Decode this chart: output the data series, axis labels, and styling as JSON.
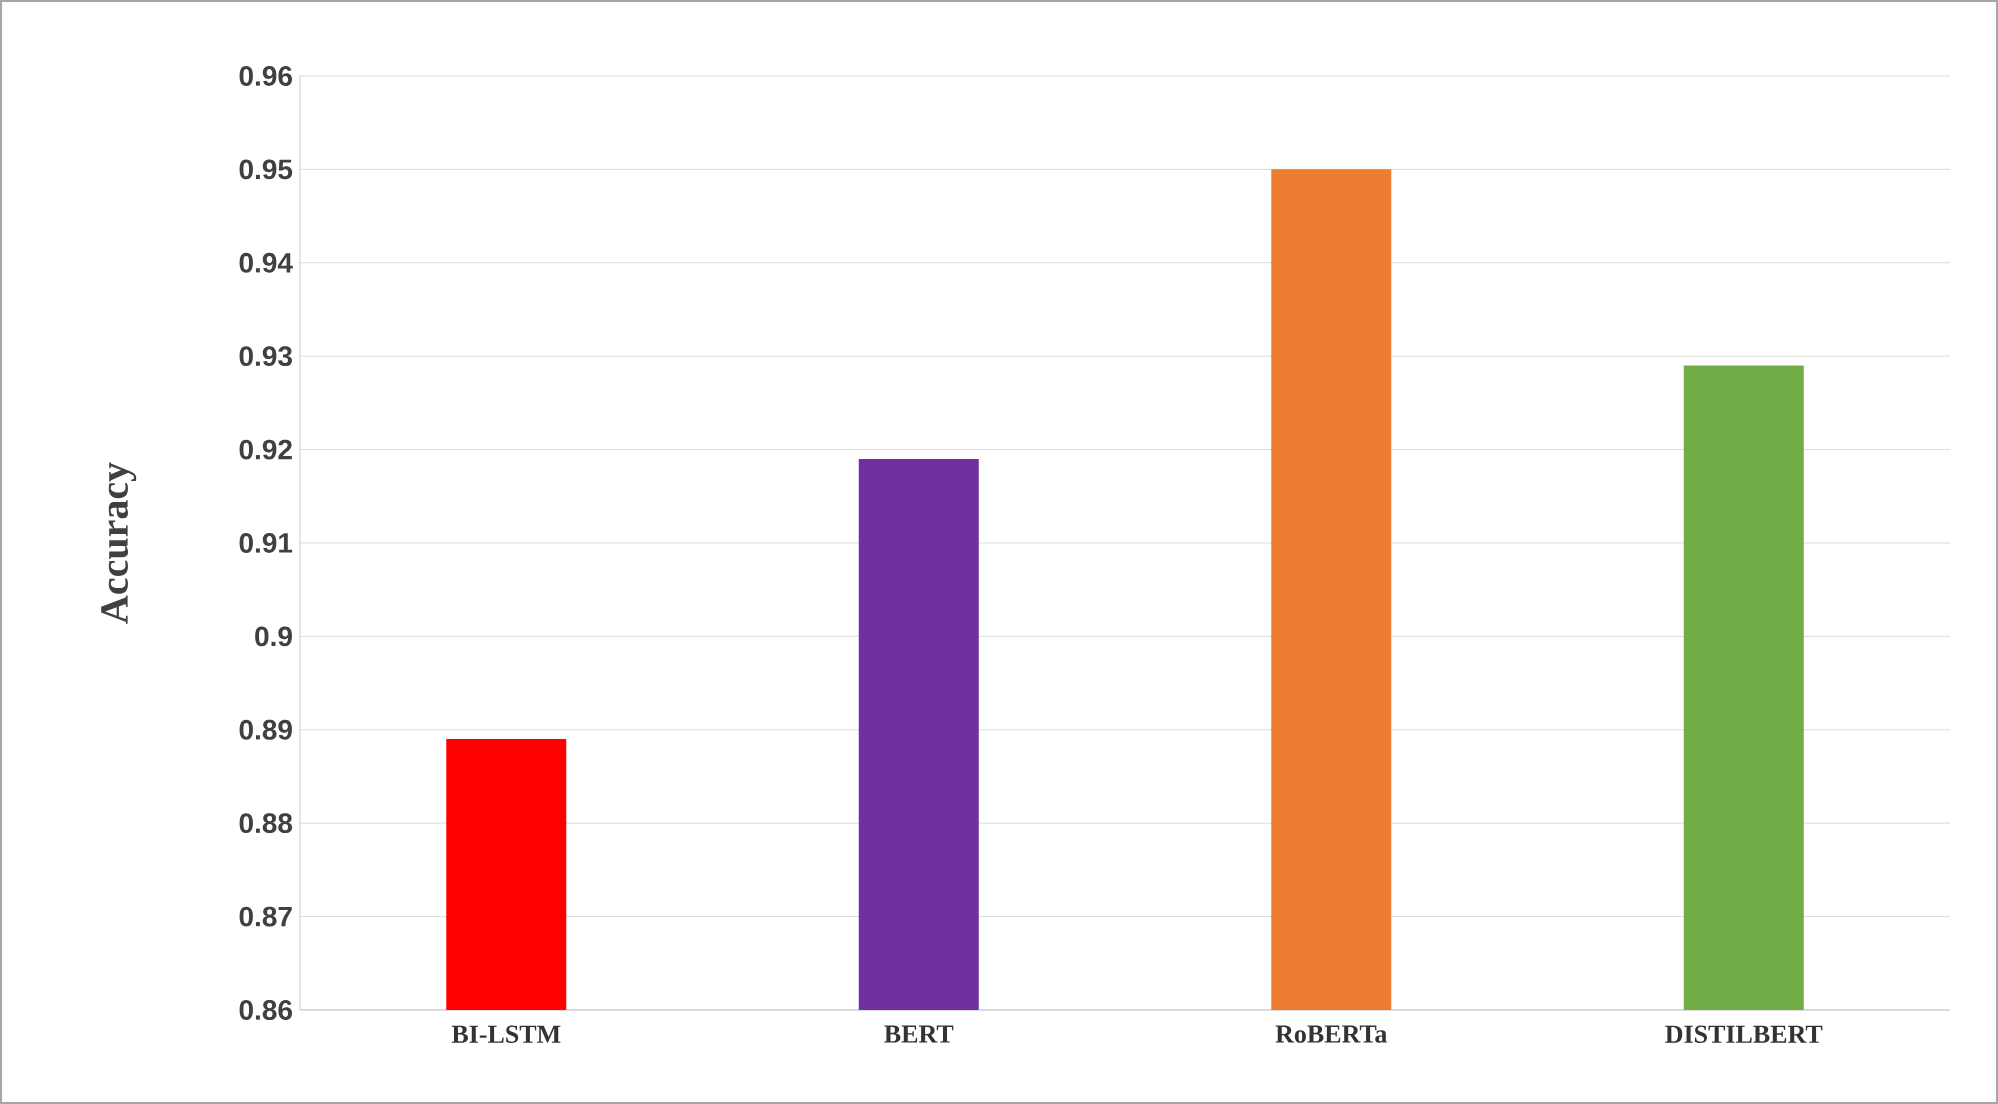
{
  "chart_data": {
    "type": "bar",
    "ylabel": "Accuracy",
    "categories": [
      "BI-LSTM",
      "BERT",
      "RoBERTa",
      "DISTILBERT"
    ],
    "values": [
      0.889,
      0.919,
      0.95,
      0.929
    ],
    "colors": [
      "#ff0000",
      "#7030a0",
      "#ed7d31",
      "#70ad47"
    ],
    "ylim": [
      0.86,
      0.96
    ],
    "yticks": [
      0.86,
      0.87,
      0.88,
      0.89,
      0.9,
      0.91,
      0.92,
      0.93,
      0.94,
      0.95,
      0.96
    ],
    "grid": "y"
  }
}
